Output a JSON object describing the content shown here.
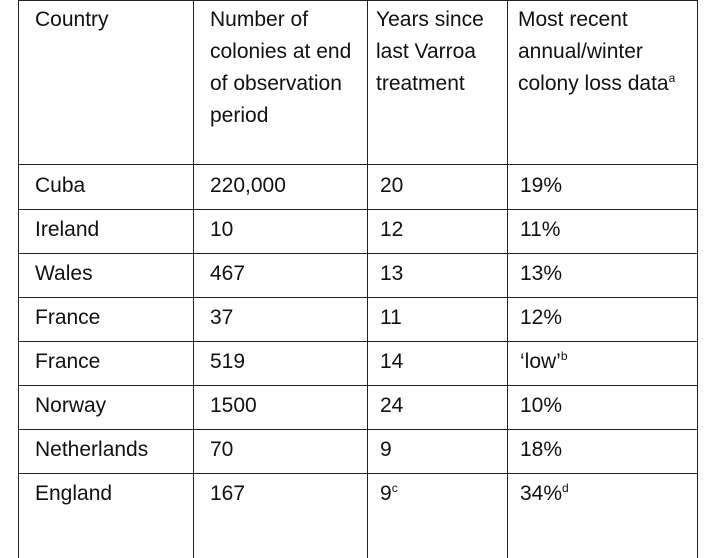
{
  "header": {
    "col1": "Country",
    "col2": "Number of colonies at end of observation period",
    "col3": "Years since last Varroa treatment",
    "col4": "Most recent annual/winter colony loss data",
    "col4_sup": "a"
  },
  "rows": [
    {
      "country": "Cuba",
      "colonies": "220,000",
      "years": "20",
      "years_sup": "",
      "loss": "19%",
      "loss_sup": ""
    },
    {
      "country": "Ireland",
      "colonies": "10",
      "years": "12",
      "years_sup": "",
      "loss": "11%",
      "loss_sup": ""
    },
    {
      "country": "Wales",
      "colonies": "467",
      "years": "13",
      "years_sup": "",
      "loss": "13%",
      "loss_sup": ""
    },
    {
      "country": "France",
      "colonies": "37",
      "years": "11",
      "years_sup": "",
      "loss": "12%",
      "loss_sup": ""
    },
    {
      "country": "France",
      "colonies": "519",
      "years": "14",
      "years_sup": "",
      "loss": "‘low’",
      "loss_sup": "b"
    },
    {
      "country": "Norway",
      "colonies": "1500",
      "years": "24",
      "years_sup": "",
      "loss": "10%",
      "loss_sup": ""
    },
    {
      "country": "Netherlands",
      "colonies": "70",
      "years": "9",
      "years_sup": "",
      "loss": "18%",
      "loss_sup": ""
    },
    {
      "country": "England",
      "colonies": "167",
      "years": "9",
      "years_sup": "c",
      "loss": "34%",
      "loss_sup": "d"
    }
  ]
}
